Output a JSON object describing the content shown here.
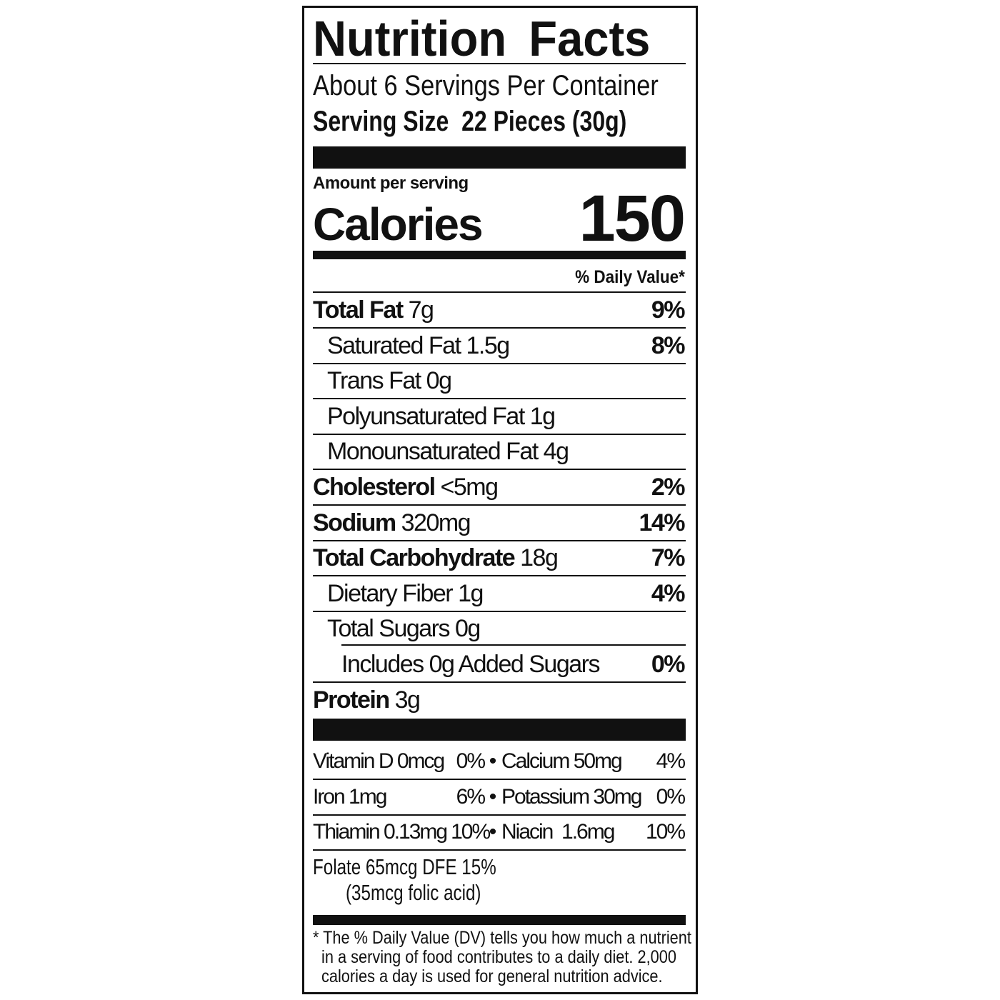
{
  "title": "Nutrition Facts",
  "servings_per_container": "About 6 Servings Per Container",
  "serving_size_label": "Serving Size",
  "serving_size_value": "22 Pieces (30g)",
  "amount_per_serving": "Amount per serving",
  "calories_label": "Calories",
  "calories_value": "150",
  "daily_value_header": "% Daily Value*",
  "nutrients": [
    {
      "name": "Total Fat",
      "amount": "7g",
      "dv": "9%",
      "bold": true,
      "indent": 0
    },
    {
      "name": "Saturated Fat",
      "amount": "1.5g",
      "dv": "8%",
      "bold": false,
      "indent": 1
    },
    {
      "name": "Trans Fat",
      "amount": "0g",
      "dv": "",
      "bold": false,
      "indent": 1
    },
    {
      "name": "Polyunsaturated Fat",
      "amount": "1g",
      "dv": "",
      "bold": false,
      "indent": 1
    },
    {
      "name": "Monounsaturated Fat",
      "amount": "4g",
      "dv": "",
      "bold": false,
      "indent": 1
    },
    {
      "name": "Cholesterol",
      "amount": "<5mg",
      "dv": "2%",
      "bold": true,
      "indent": 0
    },
    {
      "name": "Sodium",
      "amount": "320mg",
      "dv": "14%",
      "bold": true,
      "indent": 0
    },
    {
      "name": "Total Carbohydrate",
      "amount": "18g",
      "dv": "7%",
      "bold": true,
      "indent": 0
    },
    {
      "name": "Dietary Fiber",
      "amount": "1g",
      "dv": "4%",
      "bold": false,
      "indent": 1
    },
    {
      "name": "Total Sugars",
      "amount": "0g",
      "dv": "",
      "bold": false,
      "indent": 1
    },
    {
      "name": "Includes 0g Added Sugars",
      "amount": "",
      "dv": "0%",
      "bold": false,
      "indent": 2
    },
    {
      "name": "Protein",
      "amount": "3g",
      "dv": "",
      "bold": true,
      "indent": 0
    }
  ],
  "vitamins": [
    {
      "left": "Vitamin D 0mcg",
      "left_dv": "0%",
      "right": "Calcium 50mg",
      "right_dv": "4%"
    },
    {
      "left": "Iron 1mg",
      "left_dv": "6%",
      "right": "Potassium 30mg",
      "right_dv": "0%"
    },
    {
      "left": "Thiamin 0.13mg",
      "left_dv": "10%",
      "right": "Niacin  1.6mg",
      "right_dv": "10%"
    }
  ],
  "folate_line1": "Folate 65mcg DFE 15%",
  "folate_line2": "(35mcg folic acid)",
  "footnote": [
    "* The % Daily Value (DV) tells you how much a nutrient",
    "in a serving of food contributes to a daily diet. 2,000",
    "calories a day is used for general nutrition advice."
  ]
}
